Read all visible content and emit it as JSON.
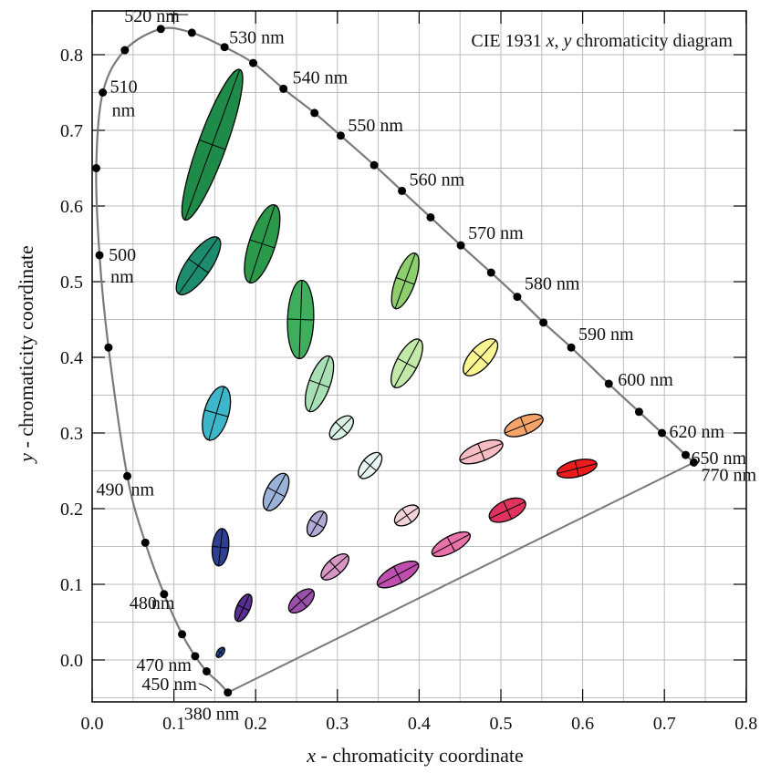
{
  "chart_data": {
    "type": "scatter",
    "title": "CIE 1931 x, y chromaticity diagram",
    "title_parts": [
      "CIE 1931 ",
      "x",
      ", ",
      "y",
      " chromaticity diagram"
    ],
    "xlabel": "x - chromaticity coordinate",
    "xlabel_parts": [
      "x",
      " - chromaticity coordinate"
    ],
    "ylabel": "y - chromaticity coordinate",
    "ylabel_parts": [
      "y",
      " - chromaticity coordinate"
    ],
    "xlim": [
      0.0,
      0.8
    ],
    "ylim": [
      -0.05,
      0.85
    ],
    "grid": true,
    "x_ticks": [
      "0.0",
      "0.1",
      "0.2",
      "0.3",
      "0.4",
      "0.5",
      "0.6",
      "0.7",
      "0.8"
    ],
    "y_ticks": [
      "0.0",
      "0.1",
      "0.2",
      "0.3",
      "0.4",
      "0.5",
      "0.6",
      "0.7",
      "0.8"
    ],
    "spectral_locus": [
      {
        "x": 0.166,
        "y": -0.043
      },
      {
        "x": 0.155,
        "y": -0.03
      },
      {
        "x": 0.14,
        "y": -0.015
      },
      {
        "x": 0.126,
        "y": 0.005
      },
      {
        "x": 0.11,
        "y": 0.034
      },
      {
        "x": 0.088,
        "y": 0.087
      },
      {
        "x": 0.065,
        "y": 0.155
      },
      {
        "x": 0.043,
        "y": 0.243
      },
      {
        "x": 0.02,
        "y": 0.413
      },
      {
        "x": 0.009,
        "y": 0.535
      },
      {
        "x": 0.005,
        "y": 0.65
      },
      {
        "x": 0.013,
        "y": 0.75
      },
      {
        "x": 0.04,
        "y": 0.806
      },
      {
        "x": 0.084,
        "y": 0.834
      },
      {
        "x": 0.122,
        "y": 0.829
      },
      {
        "x": 0.162,
        "y": 0.81
      },
      {
        "x": 0.197,
        "y": 0.789
      },
      {
        "x": 0.234,
        "y": 0.755
      },
      {
        "x": 0.272,
        "y": 0.723
      },
      {
        "x": 0.304,
        "y": 0.693
      },
      {
        "x": 0.345,
        "y": 0.654
      },
      {
        "x": 0.379,
        "y": 0.62
      },
      {
        "x": 0.414,
        "y": 0.585
      },
      {
        "x": 0.451,
        "y": 0.548
      },
      {
        "x": 0.488,
        "y": 0.512
      },
      {
        "x": 0.52,
        "y": 0.48
      },
      {
        "x": 0.552,
        "y": 0.446
      },
      {
        "x": 0.586,
        "y": 0.413
      },
      {
        "x": 0.632,
        "y": 0.365
      },
      {
        "x": 0.669,
        "y": 0.328
      },
      {
        "x": 0.697,
        "y": 0.3
      },
      {
        "x": 0.726,
        "y": 0.271
      },
      {
        "x": 0.736,
        "y": 0.261
      }
    ],
    "wavelength_labels": [
      {
        "text": "520 nm",
        "x": 0.084,
        "y": 0.834
      },
      {
        "text": "530 nm",
        "x": 0.162,
        "y": 0.81
      },
      {
        "text": "540 nm",
        "x": 0.234,
        "y": 0.755
      },
      {
        "text": "550 nm",
        "x": 0.304,
        "y": 0.693
      },
      {
        "text": "560 nm",
        "x": 0.379,
        "y": 0.62
      },
      {
        "text": "570 nm",
        "x": 0.451,
        "y": 0.548
      },
      {
        "text": "580 nm",
        "x": 0.52,
        "y": 0.48
      },
      {
        "text": "590 nm",
        "x": 0.586,
        "y": 0.413
      },
      {
        "text": "600 nm",
        "x": 0.632,
        "y": 0.365
      },
      {
        "text": "620 nm",
        "x": 0.697,
        "y": 0.3
      },
      {
        "text": "650 nm",
        "x": 0.726,
        "y": 0.271
      },
      {
        "text": "770 nm",
        "x": 0.736,
        "y": 0.261
      },
      {
        "text": "510",
        "x": 0.013,
        "y": 0.75
      },
      {
        "text": "nm",
        "x": 0.013,
        "y": 0.75
      },
      {
        "text": "500",
        "x": 0.009,
        "y": 0.535
      },
      {
        "text": "nm",
        "x": 0.009,
        "y": 0.535
      },
      {
        "text": "490",
        "x": 0.043,
        "y": 0.243
      },
      {
        "text": "nm",
        "x": 0.043,
        "y": 0.243
      },
      {
        "text": "480",
        "x": 0.088,
        "y": 0.087
      },
      {
        "text": "nm",
        "x": 0.088,
        "y": 0.087
      },
      {
        "text": "470 nm",
        "x": 0.126,
        "y": 0.005
      },
      {
        "text": "450 nm",
        "x": 0.155,
        "y": -0.03
      },
      {
        "text": "380 nm",
        "x": 0.166,
        "y": -0.043
      }
    ],
    "ellipses": [
      {
        "cx": 0.147,
        "cy": 0.681,
        "a": 0.098,
        "b": 0.017,
        "angle_deg": 70,
        "color": "#1e8c48"
      },
      {
        "cx": 0.13,
        "cy": 0.521,
        "a": 0.042,
        "b": 0.015,
        "angle_deg": 55,
        "color": "#1d8b6e"
      },
      {
        "cx": 0.208,
        "cy": 0.55,
        "a": 0.05,
        "b": 0.016,
        "angle_deg": 72,
        "color": "#2a9a4a"
      },
      {
        "cx": 0.255,
        "cy": 0.45,
        "a": 0.048,
        "b": 0.016,
        "angle_deg": 88,
        "color": "#3fae5c"
      },
      {
        "cx": 0.383,
        "cy": 0.501,
        "a": 0.036,
        "b": 0.012,
        "angle_deg": 70,
        "color": "#8dcf6d"
      },
      {
        "cx": 0.152,
        "cy": 0.326,
        "a": 0.034,
        "b": 0.015,
        "angle_deg": 74,
        "color": "#3cb6c8"
      },
      {
        "cx": 0.278,
        "cy": 0.365,
        "a": 0.036,
        "b": 0.013,
        "angle_deg": 70,
        "color": "#a8dfb4"
      },
      {
        "cx": 0.385,
        "cy": 0.392,
        "a": 0.033,
        "b": 0.013,
        "angle_deg": 62,
        "color": "#c3e9a9"
      },
      {
        "cx": 0.475,
        "cy": 0.4,
        "a": 0.028,
        "b": 0.013,
        "angle_deg": 48,
        "color": "#fbf590"
      },
      {
        "cx": 0.305,
        "cy": 0.307,
        "a": 0.018,
        "b": 0.01,
        "angle_deg": 45,
        "color": "#d9f1e4"
      },
      {
        "cx": 0.34,
        "cy": 0.257,
        "a": 0.019,
        "b": 0.01,
        "angle_deg": 50,
        "color": "#e6f5f1"
      },
      {
        "cx": 0.528,
        "cy": 0.31,
        "a": 0.025,
        "b": 0.011,
        "angle_deg": 22,
        "color": "#f5a369"
      },
      {
        "cx": 0.476,
        "cy": 0.275,
        "a": 0.028,
        "b": 0.011,
        "angle_deg": 22,
        "color": "#f7bcc4"
      },
      {
        "cx": 0.593,
        "cy": 0.253,
        "a": 0.025,
        "b": 0.01,
        "angle_deg": 14,
        "color": "#ec1c1c"
      },
      {
        "cx": 0.225,
        "cy": 0.222,
        "a": 0.025,
        "b": 0.012,
        "angle_deg": 62,
        "color": "#9bb2d8"
      },
      {
        "cx": 0.275,
        "cy": 0.18,
        "a": 0.017,
        "b": 0.01,
        "angle_deg": 60,
        "color": "#b0aad5"
      },
      {
        "cx": 0.385,
        "cy": 0.191,
        "a": 0.017,
        "b": 0.01,
        "angle_deg": 35,
        "color": "#f4d2d9"
      },
      {
        "cx": 0.508,
        "cy": 0.198,
        "a": 0.024,
        "b": 0.012,
        "angle_deg": 25,
        "color": "#e0325f"
      },
      {
        "cx": 0.157,
        "cy": 0.149,
        "a": 0.023,
        "b": 0.01,
        "angle_deg": 84,
        "color": "#2e3f96"
      },
      {
        "cx": 0.439,
        "cy": 0.153,
        "a": 0.026,
        "b": 0.01,
        "angle_deg": 28,
        "color": "#e973a8"
      },
      {
        "cx": 0.297,
        "cy": 0.123,
        "a": 0.021,
        "b": 0.01,
        "angle_deg": 42,
        "color": "#d796c4"
      },
      {
        "cx": 0.374,
        "cy": 0.113,
        "a": 0.028,
        "b": 0.011,
        "angle_deg": 28,
        "color": "#bf4faf"
      },
      {
        "cx": 0.256,
        "cy": 0.078,
        "a": 0.019,
        "b": 0.01,
        "angle_deg": 42,
        "color": "#9a4fa8"
      },
      {
        "cx": 0.185,
        "cy": 0.069,
        "a": 0.018,
        "b": 0.008,
        "angle_deg": 65,
        "color": "#5a2d92"
      },
      {
        "cx": 0.157,
        "cy": 0.01,
        "a": 0.007,
        "b": 0.004,
        "angle_deg": 55,
        "color": "#2455a8"
      }
    ],
    "colors": {
      "locus": "#7a7a7a",
      "grid": "#bdbdbd",
      "marker": "#000000"
    }
  }
}
